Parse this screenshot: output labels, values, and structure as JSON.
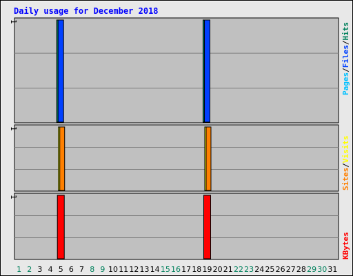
{
  "chart_data": [
    {
      "type": "bar",
      "title": "Daily usage for December 2018",
      "panel": "pages-files-hits",
      "categories": [
        "1",
        "2",
        "3",
        "4",
        "5",
        "6",
        "7",
        "8",
        "9",
        "10",
        "11",
        "12",
        "13",
        "14",
        "15",
        "16",
        "17",
        "18",
        "19",
        "20",
        "21",
        "22",
        "23",
        "24",
        "25",
        "26",
        "27",
        "28",
        "29",
        "30",
        "31"
      ],
      "ymax_label": "1",
      "series": [
        {
          "name": "Hits",
          "color": "#00805c",
          "values": [
            0,
            0,
            0,
            0,
            1,
            0,
            0,
            0,
            0,
            0,
            0,
            0,
            0,
            0,
            0,
            0,
            0,
            0,
            1,
            0,
            0,
            0,
            0,
            0,
            0,
            0,
            0,
            0,
            0,
            0,
            0
          ]
        },
        {
          "name": "Files",
          "color": "#0040ff",
          "values": [
            0,
            0,
            0,
            0,
            1,
            0,
            0,
            0,
            0,
            0,
            0,
            0,
            0,
            0,
            0,
            0,
            0,
            0,
            1,
            0,
            0,
            0,
            0,
            0,
            0,
            0,
            0,
            0,
            0,
            0,
            0
          ]
        },
        {
          "name": "Pages",
          "color": "#00c0ff",
          "values": [
            0,
            0,
            0,
            0,
            0,
            0,
            0,
            0,
            0,
            0,
            0,
            0,
            0,
            0,
            0,
            0,
            0,
            0,
            0,
            0,
            0,
            0,
            0,
            0,
            0,
            0,
            0,
            0,
            0,
            0,
            0
          ]
        }
      ]
    },
    {
      "type": "bar",
      "panel": "sites-visits",
      "ymax_label": "1",
      "series": [
        {
          "name": "Visits",
          "color": "#ffff00",
          "values": [
            0,
            0,
            0,
            0,
            1,
            0,
            0,
            0,
            0,
            0,
            0,
            0,
            0,
            0,
            0,
            0,
            0,
            0,
            1,
            0,
            0,
            0,
            0,
            0,
            0,
            0,
            0,
            0,
            0,
            0,
            0
          ]
        },
        {
          "name": "Sites",
          "color": "#ff8000",
          "values": [
            0,
            0,
            0,
            0,
            1,
            0,
            0,
            0,
            0,
            0,
            0,
            0,
            0,
            0,
            0,
            0,
            0,
            0,
            1,
            0,
            0,
            0,
            0,
            0,
            0,
            0,
            0,
            0,
            0,
            0,
            0
          ]
        }
      ]
    },
    {
      "type": "bar",
      "panel": "kbytes",
      "ymax_label": "1",
      "series": [
        {
          "name": "KBytes",
          "color": "#ff0000",
          "values": [
            0,
            0,
            0,
            0,
            1,
            0,
            0,
            0,
            0,
            0,
            0,
            0,
            0,
            0,
            0,
            0,
            0,
            0,
            1,
            0,
            0,
            0,
            0,
            0,
            0,
            0,
            0,
            0,
            0,
            0,
            0
          ]
        }
      ]
    }
  ],
  "legend": {
    "top": [
      {
        "text": "Pages",
        "color": "#00c0ff"
      },
      {
        "text": "/",
        "color": "#000000"
      },
      {
        "text": "Files",
        "color": "#0040ff"
      },
      {
        "text": "/",
        "color": "#000000"
      },
      {
        "text": "Hits",
        "color": "#00805c"
      }
    ],
    "middle": [
      {
        "text": "Sites",
        "color": "#ff8000"
      },
      {
        "text": "/",
        "color": "#000000"
      },
      {
        "text": "Visits",
        "color": "#ffff00"
      }
    ],
    "bottom": [
      {
        "text": "KBytes",
        "color": "#ff0000"
      }
    ]
  },
  "weekend_days": [
    "1",
    "2",
    "8",
    "9",
    "15",
    "16",
    "22",
    "23",
    "29",
    "30"
  ],
  "weekend_color": "#00805c",
  "weekday_color": "#000000",
  "colors": {
    "title": "#0000ff",
    "plot_bg": "#c0c0c0",
    "grid": "#808080",
    "page_bg": "#e8e8e8"
  }
}
